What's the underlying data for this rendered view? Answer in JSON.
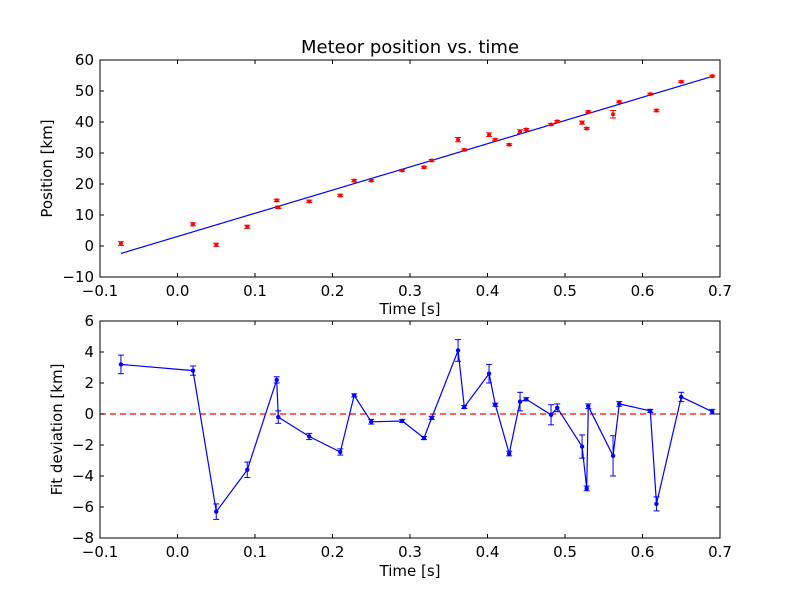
{
  "chart_data": [
    {
      "type": "scatter",
      "title": "Meteor position vs. time",
      "xlabel": "Time [s]",
      "ylabel": "Position [km]",
      "xlim": [
        -0.1,
        0.7
      ],
      "ylim": [
        -10,
        60
      ],
      "xticks": [
        "−0.1",
        "0.0",
        "0.1",
        "0.2",
        "0.3",
        "0.4",
        "0.5",
        "0.6",
        "0.7"
      ],
      "yticks": [
        "−10",
        "0",
        "10",
        "20",
        "30",
        "40",
        "50",
        "60"
      ],
      "grid": false,
      "marker_color": "#ff0000",
      "line_color": "#0000ff",
      "points": [
        {
          "x": -0.073,
          "y": 0.8,
          "err": 0.6
        },
        {
          "x": 0.02,
          "y": 7.0,
          "err": 0.5
        },
        {
          "x": 0.05,
          "y": 0.4,
          "err": 0.5
        },
        {
          "x": 0.09,
          "y": 6.2,
          "err": 0.5
        },
        {
          "x": 0.128,
          "y": 14.7,
          "err": 0.4
        },
        {
          "x": 0.13,
          "y": 12.5,
          "err": 0.4
        },
        {
          "x": 0.17,
          "y": 14.4,
          "err": 0.4
        },
        {
          "x": 0.21,
          "y": 16.3,
          "err": 0.4
        },
        {
          "x": 0.228,
          "y": 21.1,
          "err": 0.4
        },
        {
          "x": 0.25,
          "y": 21.1,
          "err": 0.3
        },
        {
          "x": 0.29,
          "y": 24.4,
          "err": 0.3
        },
        {
          "x": 0.318,
          "y": 25.4,
          "err": 0.3
        },
        {
          "x": 0.328,
          "y": 27.6,
          "err": 0.3
        },
        {
          "x": 0.362,
          "y": 34.3,
          "err": 0.7
        },
        {
          "x": 0.37,
          "y": 31.0,
          "err": 0.3
        },
        {
          "x": 0.402,
          "y": 35.9,
          "err": 0.6
        },
        {
          "x": 0.41,
          "y": 34.3,
          "err": 0.3
        },
        {
          "x": 0.428,
          "y": 32.7,
          "err": 0.3
        },
        {
          "x": 0.442,
          "y": 36.9,
          "err": 0.6
        },
        {
          "x": 0.45,
          "y": 37.6,
          "err": 0.3
        },
        {
          "x": 0.482,
          "y": 39.2,
          "err": 0.3
        },
        {
          "x": 0.49,
          "y": 40.2,
          "err": 0.3
        },
        {
          "x": 0.522,
          "y": 39.8,
          "err": 0.5
        },
        {
          "x": 0.528,
          "y": 37.9,
          "err": 0.3
        },
        {
          "x": 0.53,
          "y": 43.3,
          "err": 0.3
        },
        {
          "x": 0.562,
          "y": 42.5,
          "err": 1.2
        },
        {
          "x": 0.57,
          "y": 46.5,
          "err": 0.3
        },
        {
          "x": 0.61,
          "y": 49.0,
          "err": 0.3
        },
        {
          "x": 0.618,
          "y": 43.7,
          "err": 0.4
        },
        {
          "x": 0.65,
          "y": 53.0,
          "err": 0.3
        },
        {
          "x": 0.69,
          "y": 54.8,
          "err": 0.3
        }
      ],
      "fit_line": [
        {
          "x": -0.073,
          "y": -2.4
        },
        {
          "x": 0.69,
          "y": 54.7
        }
      ]
    },
    {
      "type": "line",
      "title": "",
      "xlabel": "Time [s]",
      "ylabel": "Fit deviation [km]",
      "xlim": [
        -0.1,
        0.7
      ],
      "ylim": [
        -8,
        6
      ],
      "xticks": [
        "−0.1",
        "0.0",
        "0.1",
        "0.2",
        "0.3",
        "0.4",
        "0.5",
        "0.6",
        "0.7"
      ],
      "yticks": [
        "−8",
        "−6",
        "−4",
        "−2",
        "0",
        "2",
        "4",
        "6"
      ],
      "grid": false,
      "line_color": "#0000ff",
      "reference_color": "#ff0000",
      "reference_y": 0,
      "points": [
        {
          "x": -0.073,
          "y": 3.2,
          "err": 0.6
        },
        {
          "x": 0.02,
          "y": 2.8,
          "err": 0.3
        },
        {
          "x": 0.05,
          "y": -6.3,
          "err": 0.5
        },
        {
          "x": 0.09,
          "y": -3.6,
          "err": 0.5
        },
        {
          "x": 0.128,
          "y": 2.2,
          "err": 0.2
        },
        {
          "x": 0.13,
          "y": -0.2,
          "err": 0.4
        },
        {
          "x": 0.17,
          "y": -1.45,
          "err": 0.2
        },
        {
          "x": 0.21,
          "y": -2.45,
          "err": 0.2
        },
        {
          "x": 0.228,
          "y": 1.2,
          "err": 0.1
        },
        {
          "x": 0.25,
          "y": -0.5,
          "err": 0.15
        },
        {
          "x": 0.29,
          "y": -0.45,
          "err": 0.1
        },
        {
          "x": 0.318,
          "y": -1.55,
          "err": 0.1
        },
        {
          "x": 0.328,
          "y": -0.25,
          "err": 0.1
        },
        {
          "x": 0.362,
          "y": 4.1,
          "err": 0.7
        },
        {
          "x": 0.37,
          "y": 0.45,
          "err": 0.1
        },
        {
          "x": 0.402,
          "y": 2.6,
          "err": 0.6
        },
        {
          "x": 0.41,
          "y": 0.6,
          "err": 0.1
        },
        {
          "x": 0.428,
          "y": -2.55,
          "err": 0.15
        },
        {
          "x": 0.442,
          "y": 0.8,
          "err": 0.6
        },
        {
          "x": 0.45,
          "y": 0.95,
          "err": 0.1
        },
        {
          "x": 0.482,
          "y": -0.05,
          "err": 0.65
        },
        {
          "x": 0.49,
          "y": 0.4,
          "err": 0.25
        },
        {
          "x": 0.522,
          "y": -2.1,
          "err": 0.75
        },
        {
          "x": 0.528,
          "y": -4.8,
          "err": 0.15
        },
        {
          "x": 0.53,
          "y": 0.5,
          "err": 0.15
        },
        {
          "x": 0.562,
          "y": -2.7,
          "err": 1.3
        },
        {
          "x": 0.57,
          "y": 0.65,
          "err": 0.15
        },
        {
          "x": 0.61,
          "y": 0.2,
          "err": 0.1
        },
        {
          "x": 0.618,
          "y": -5.8,
          "err": 0.45
        },
        {
          "x": 0.65,
          "y": 1.1,
          "err": 0.3
        },
        {
          "x": 0.69,
          "y": 0.15,
          "err": 0.15
        }
      ]
    }
  ]
}
